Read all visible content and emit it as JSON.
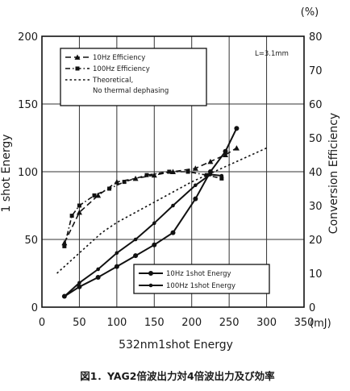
{
  "chart_data": {
    "type": "line",
    "xlabel": "532nm1shot Energy",
    "x_unit": "(mJ)",
    "ylabel_left": "1 shot Energy",
    "ylabel_right": "Conversion Efficiency",
    "y_right_unit": "(%)",
    "annotation": "L=3.1mm",
    "caption": "図1．YAG2倍波出力対4倍波出力及び効率",
    "xlim": [
      0,
      350
    ],
    "ylim_left": [
      0,
      200
    ],
    "ylim_right": [
      0,
      80
    ],
    "x_ticks": [
      "0",
      "50",
      "100",
      "150",
      "200",
      "250",
      "300",
      "350"
    ],
    "y_left_ticks": [
      "0",
      "50",
      "100",
      "150",
      "200"
    ],
    "y_right_ticks": [
      "0",
      "10",
      "20",
      "30",
      "40",
      "50",
      "60",
      "70",
      "80"
    ],
    "grid": true,
    "series": [
      {
        "name": "10Hz Efficiency",
        "axis": "right",
        "style": "dashed",
        "marker": "triangle",
        "x": [
          30,
          50,
          75,
          100,
          125,
          150,
          175,
          205,
          225,
          245,
          260
        ],
        "y": [
          19,
          28,
          33,
          37,
          38,
          39,
          40,
          41,
          43,
          45,
          47
        ]
      },
      {
        "name": "100Hz Efficiency",
        "axis": "right",
        "style": "dashdot",
        "marker": "square",
        "x": [
          30,
          40,
          50,
          70,
          90,
          110,
          140,
          170,
          195,
          220,
          240
        ],
        "y": [
          18,
          27,
          30,
          33,
          35,
          37,
          39,
          40,
          40,
          39,
          38
        ]
      },
      {
        "name": "Theoretical, No thermal dephasing",
        "axis": "right",
        "style": "dotted",
        "marker": "none",
        "x": [
          20,
          50,
          80,
          100,
          150,
          200,
          250,
          300
        ],
        "y": [
          10,
          16,
          22,
          25,
          31,
          37,
          42,
          47
        ]
      },
      {
        "name": "10Hz 1shot Energy",
        "axis": "left",
        "style": "solid",
        "marker": "circle",
        "x": [
          30,
          50,
          75,
          100,
          125,
          150,
          175,
          205,
          225,
          245,
          260
        ],
        "y": [
          8,
          15,
          22,
          30,
          38,
          46,
          55,
          80,
          100,
          115,
          132
        ]
      },
      {
        "name": "100Hz 1shot Energy",
        "axis": "left",
        "style": "solid",
        "marker": "dot",
        "x": [
          30,
          50,
          75,
          100,
          125,
          150,
          175,
          205,
          225,
          240
        ],
        "y": [
          8,
          18,
          28,
          40,
          50,
          62,
          75,
          90,
          98,
          97
        ]
      }
    ]
  }
}
